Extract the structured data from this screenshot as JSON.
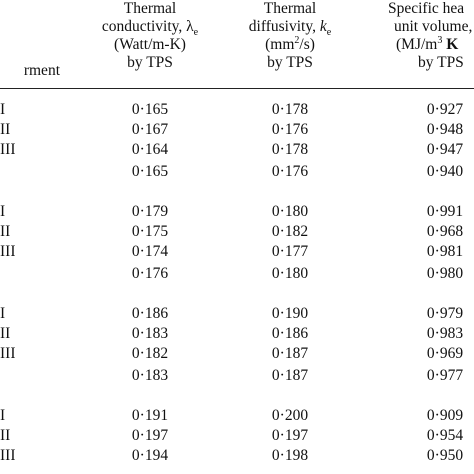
{
  "header": {
    "col0": "rment",
    "col1": {
      "l1": "Thermal",
      "l2_pre": "conductivity, ",
      "l2_sym": "λ",
      "l2_sub": "e",
      "l3": "(Watt/m-K)",
      "l4": "by TPS"
    },
    "col2": {
      "l1": "Thermal",
      "l2_pre": "diffusivity, ",
      "l2_sym": "k",
      "l2_sub": "e",
      "l3_pre": "(mm",
      "l3_sup": "2",
      "l3_post": "/s)",
      "l4": "by TPS"
    },
    "col3": {
      "l1": "Specific hea",
      "l2": "unit volume,",
      "l3_pre": "(MJ/m",
      "l3_sup": "3",
      "l3_post": " K",
      "l4": "by TPS"
    }
  },
  "rows": [
    {
      "label": "I",
      "c1": "0·165",
      "c2": "0·178",
      "c3": "0·927"
    },
    {
      "label": "II",
      "c1": "0·167",
      "c2": "0·176",
      "c3": "0·948"
    },
    {
      "label": "III",
      "c1": "0·164",
      "c2": "0·178",
      "c3": "0·947"
    },
    {
      "label": "",
      "c1": "0·165",
      "c2": "0·176",
      "c3": "0·940"
    },
    {
      "label": "I",
      "c1": "0·179",
      "c2": "0·180",
      "c3": "0·991"
    },
    {
      "label": "II",
      "c1": "0·175",
      "c2": "0·182",
      "c3": "0·968"
    },
    {
      "label": "III",
      "c1": "0·174",
      "c2": "0·177",
      "c3": "0·981"
    },
    {
      "label": "",
      "c1": "0·176",
      "c2": "0·180",
      "c3": "0·980"
    },
    {
      "label": "I",
      "c1": "0·186",
      "c2": "0·190",
      "c3": "0·979"
    },
    {
      "label": "II",
      "c1": "0·183",
      "c2": "0·186",
      "c3": "0·983"
    },
    {
      "label": "III",
      "c1": "0·182",
      "c2": "0·187",
      "c3": "0·969"
    },
    {
      "label": "",
      "c1": "0·183",
      "c2": "0·187",
      "c3": "0·977"
    },
    {
      "label": "I",
      "c1": "0·191",
      "c2": "0·200",
      "c3": "0·909"
    },
    {
      "label": "II",
      "c1": "0·197",
      "c2": "0·197",
      "c3": "0·954"
    },
    {
      "label": "III",
      "c1": "0·194",
      "c2": "0·198",
      "c3": "0·950"
    }
  ]
}
